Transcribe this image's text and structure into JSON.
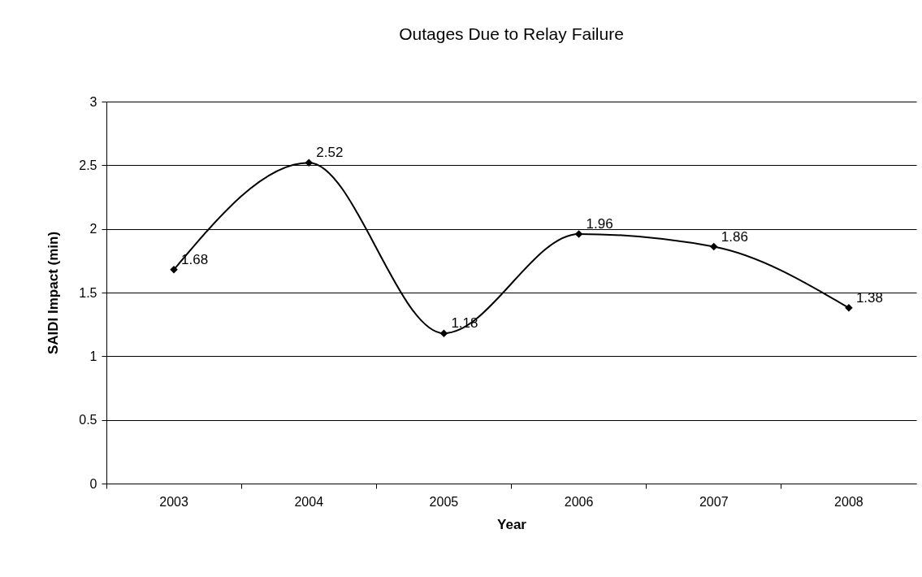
{
  "chart_data": {
    "type": "line",
    "title": "Outages Due to Relay Failure",
    "xlabel": "Year",
    "ylabel": "SAIDI Impact (min)",
    "categories": [
      "2003",
      "2004",
      "2005",
      "2006",
      "2007",
      "2008"
    ],
    "series": [
      {
        "color": "#000000",
        "values": [
          1.68,
          2.52,
          1.18,
          1.96,
          1.86,
          1.38
        ]
      }
    ],
    "ylim": [
      0,
      3
    ],
    "yticks": [
      0,
      0.5,
      1,
      1.5,
      2,
      2.5,
      3
    ],
    "grid": "y",
    "marker": "diamond",
    "line_style": "solid",
    "data_labels": true
  }
}
